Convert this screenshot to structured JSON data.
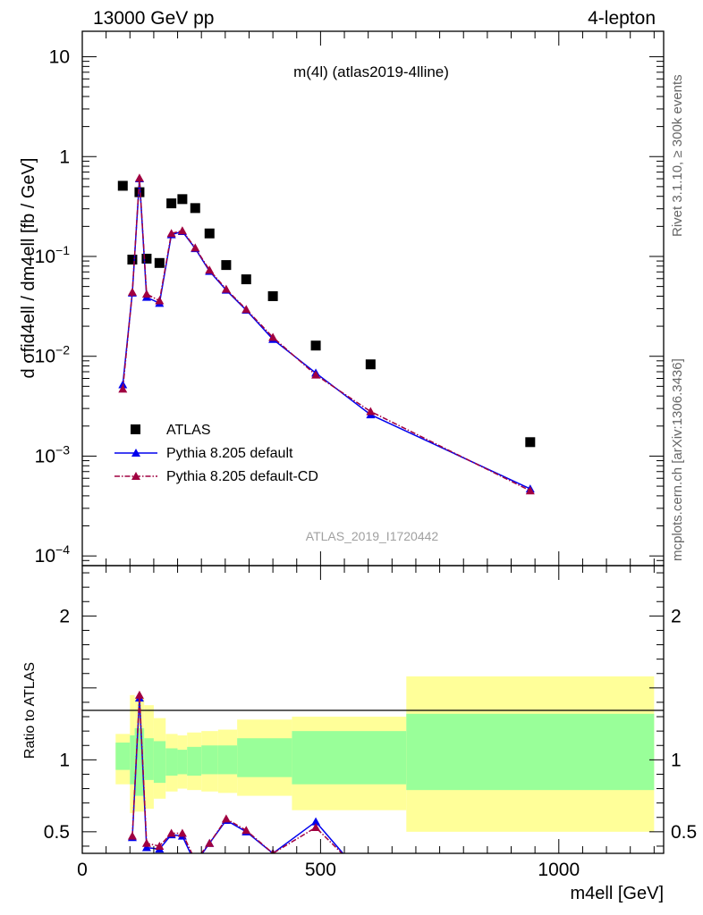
{
  "header": {
    "left": "13000 GeV pp",
    "right": "4-lepton"
  },
  "side_labels": {
    "rivet": "Rivet 3.1.10, ≥ 300k events",
    "mcplots": "mcplots.cern.ch [arXiv:1306.3436]"
  },
  "watermark": "ATLAS_2019_I1720442",
  "colors": {
    "data": "#000000",
    "mc1": "#0000ee",
    "mc2": "#a00040",
    "band_inner": "#99ff99",
    "band_outer": "#ffff99"
  },
  "chart_data": [
    {
      "type": "scatter",
      "panel": "main",
      "title": "m(4l) (atlas2019-4lline)",
      "xlabel": "m4ell [GeV]",
      "ylabel": "d σfid4ell / dm4ell [fb / GeV]",
      "yscale": "log",
      "xlim": [
        0,
        1220
      ],
      "ylim": [
        8e-05,
        18
      ],
      "yticks": [
        {
          "value": 0.0001,
          "base": "10",
          "exp": "−4"
        },
        {
          "value": 0.001,
          "base": "10",
          "exp": "−3"
        },
        {
          "value": 0.01,
          "base": "10",
          "exp": "−2"
        },
        {
          "value": 0.1,
          "base": "10",
          "exp": "−1"
        },
        {
          "value": 1,
          "base": "1",
          "exp": ""
        },
        {
          "value": 10,
          "base": "10",
          "exp": ""
        }
      ],
      "series": [
        {
          "name": "ATLAS",
          "x": [
            85,
            105,
            120,
            135,
            162,
            187,
            210,
            237,
            267,
            302,
            344,
            400,
            490,
            605,
            940
          ],
          "y": [
            0.51,
            0.093,
            0.44,
            0.095,
            0.086,
            0.34,
            0.375,
            0.305,
            0.17,
            0.082,
            0.059,
            0.04,
            0.0128,
            0.0083,
            0.00138
          ]
        },
        {
          "name": "Pythia 8.205 default",
          "x": [
            85,
            105,
            120,
            135,
            162,
            187,
            210,
            237,
            267,
            302,
            344,
            400,
            490,
            605,
            940
          ],
          "y": [
            0.0052,
            0.043,
            0.6,
            0.039,
            0.034,
            0.165,
            0.178,
            0.12,
            0.071,
            0.046,
            0.029,
            0.0148,
            0.0068,
            0.0026,
            0.00047
          ]
        },
        {
          "name": "Pythia 8.205 default-CD",
          "x": [
            85,
            105,
            120,
            135,
            162,
            187,
            210,
            237,
            267,
            302,
            344,
            400,
            490,
            605,
            940
          ],
          "y": [
            0.0047,
            0.044,
            0.61,
            0.042,
            0.036,
            0.17,
            0.181,
            0.122,
            0.073,
            0.047,
            0.0295,
            0.0155,
            0.0065,
            0.0028,
            0.00045
          ]
        }
      ]
    },
    {
      "type": "line",
      "panel": "ratio",
      "ylabel": "Ratio to ATLAS",
      "xlim": [
        0,
        1220
      ],
      "ylim": [
        0.35,
        2.35
      ],
      "yticks": [
        0.5,
        1,
        2
      ],
      "xticks": [
        0,
        500,
        1000
      ],
      "bands": {
        "bin_edges": [
          70,
          100,
          110,
          130,
          150,
          175,
          200,
          220,
          250,
          285,
          325,
          440,
          680,
          1200
        ],
        "inner": [
          [
            0.93,
            1.12
          ],
          [
            0.83,
            1.17
          ],
          [
            0.75,
            1.22
          ],
          [
            0.86,
            1.15
          ],
          [
            0.84,
            1.13
          ],
          [
            0.89,
            1.08
          ],
          [
            0.9,
            1.07
          ],
          [
            0.89,
            1.09
          ],
          [
            0.9,
            1.1
          ],
          [
            0.9,
            1.1
          ],
          [
            0.88,
            1.15
          ],
          [
            0.83,
            1.2
          ],
          [
            0.79,
            1.32
          ]
        ],
        "outer": [
          [
            0.83,
            1.18
          ],
          [
            0.63,
            1.45
          ],
          [
            0.64,
            1.43
          ],
          [
            0.66,
            1.38
          ],
          [
            0.73,
            1.29
          ],
          [
            0.78,
            1.18
          ],
          [
            0.8,
            1.17
          ],
          [
            0.79,
            1.19
          ],
          [
            0.78,
            1.2
          ],
          [
            0.77,
            1.21
          ],
          [
            0.75,
            1.28
          ],
          [
            0.65,
            1.3
          ],
          [
            0.5,
            1.58
          ]
        ]
      },
      "series": [
        {
          "name": "Pythia 8.205 default",
          "x": [
            105,
            120,
            135,
            162,
            187,
            210,
            237,
            267,
            302,
            344,
            400,
            490,
            560
          ],
          "y": [
            0.46,
            1.43,
            0.39,
            0.38,
            0.48,
            0.47,
            0.28,
            0.42,
            0.58,
            0.5,
            0.35,
            0.57,
            0.3
          ]
        },
        {
          "name": "Pythia 8.205 default-CD",
          "x": [
            105,
            120,
            135,
            162,
            187,
            210,
            237,
            267,
            302,
            344,
            400,
            490,
            560
          ],
          "y": [
            0.47,
            1.45,
            0.42,
            0.4,
            0.49,
            0.49,
            0.3,
            0.42,
            0.59,
            0.51,
            0.35,
            0.53,
            0.3
          ]
        }
      ]
    }
  ]
}
